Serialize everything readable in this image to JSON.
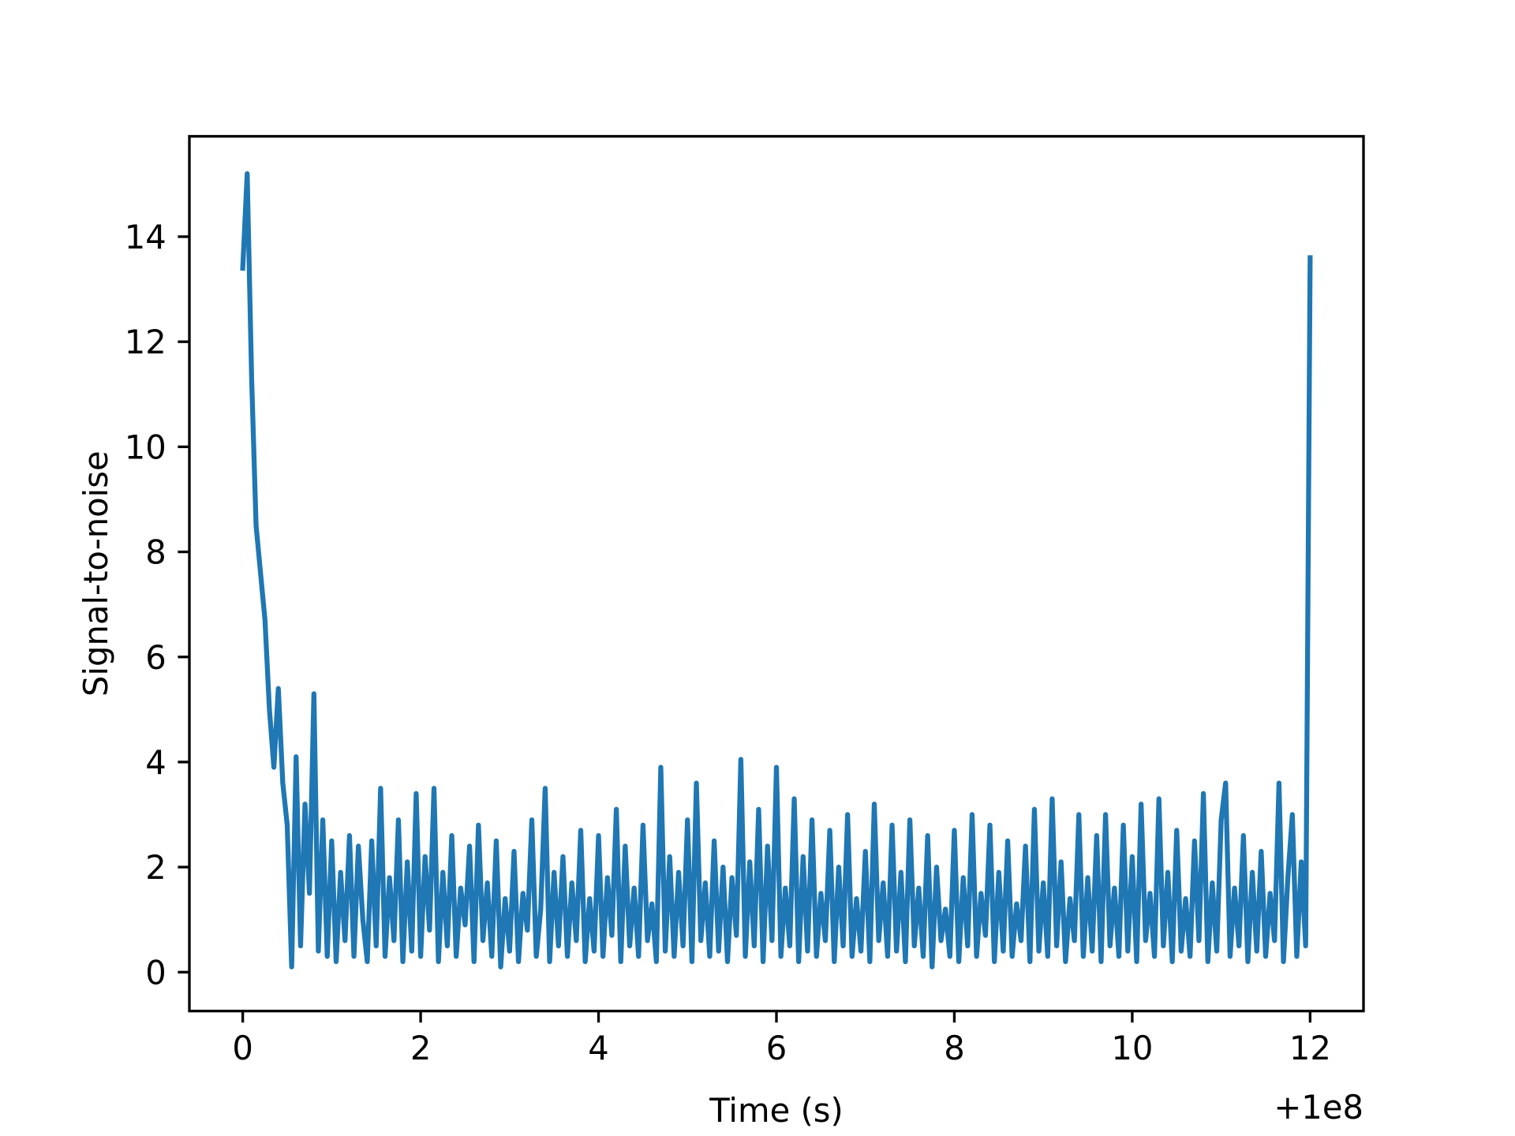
{
  "chart_data": {
    "type": "line",
    "x_label": "Time (s)",
    "y_label": "Signal-to-noise",
    "x_offset_label": "+1e8",
    "color": "#1f77b4",
    "xlim": [
      99999999.4,
      100000012.6
    ],
    "xticks": [
      {
        "value": 100000000,
        "label": "0"
      },
      {
        "value": 100000002,
        "label": "2"
      },
      {
        "value": 100000004,
        "label": "4"
      },
      {
        "value": 100000006,
        "label": "6"
      },
      {
        "value": 100000008,
        "label": "8"
      },
      {
        "value": 100000010,
        "label": "10"
      },
      {
        "value": 100000012,
        "label": "12"
      }
    ],
    "ylim": [
      -0.74,
      15.91
    ],
    "yticks": [
      0,
      2,
      4,
      6,
      8,
      10,
      12,
      14
    ],
    "x": [
      100000000.0,
      100000000.05,
      100000000.1,
      100000000.15,
      100000000.2,
      100000000.25,
      100000000.3,
      100000000.35,
      100000000.4,
      100000000.45,
      100000000.5,
      100000000.55,
      100000000.6,
      100000000.65,
      100000000.7,
      100000000.75,
      100000000.8,
      100000000.85,
      100000000.9,
      100000000.95,
      100000001.0,
      100000001.05,
      100000001.1,
      100000001.15,
      100000001.2,
      100000001.25,
      100000001.3,
      100000001.35,
      100000001.4,
      100000001.45,
      100000001.5,
      100000001.55,
      100000001.6,
      100000001.65,
      100000001.7,
      100000001.75,
      100000001.8,
      100000001.85,
      100000001.9,
      100000001.95,
      100000002.0,
      100000002.05,
      100000002.1,
      100000002.15,
      100000002.2,
      100000002.25,
      100000002.3,
      100000002.35,
      100000002.4,
      100000002.45,
      100000002.5,
      100000002.55,
      100000002.6,
      100000002.65,
      100000002.7,
      100000002.75,
      100000002.8,
      100000002.85,
      100000002.9,
      100000002.95,
      100000003.0,
      100000003.05,
      100000003.1,
      100000003.15,
      100000003.2,
      100000003.25,
      100000003.3,
      100000003.35,
      100000003.4,
      100000003.45,
      100000003.5,
      100000003.55,
      100000003.6,
      100000003.65,
      100000003.7,
      100000003.75,
      100000003.8,
      100000003.85,
      100000003.9,
      100000003.95,
      100000004.0,
      100000004.05,
      100000004.1,
      100000004.15,
      100000004.2,
      100000004.25,
      100000004.3,
      100000004.35,
      100000004.4,
      100000004.45,
      100000004.5,
      100000004.55,
      100000004.6,
      100000004.65,
      100000004.7,
      100000004.75,
      100000004.8,
      100000004.85,
      100000004.9,
      100000004.95,
      100000005.0,
      100000005.05,
      100000005.1,
      100000005.15,
      100000005.2,
      100000005.25,
      100000005.3,
      100000005.35,
      100000005.4,
      100000005.45,
      100000005.5,
      100000005.55,
      100000005.6,
      100000005.65,
      100000005.7,
      100000005.75,
      100000005.8,
      100000005.85,
      100000005.9,
      100000005.95,
      100000006.0,
      100000006.05,
      100000006.1,
      100000006.15,
      100000006.2,
      100000006.25,
      100000006.3,
      100000006.35,
      100000006.4,
      100000006.45,
      100000006.5,
      100000006.55,
      100000006.6,
      100000006.65,
      100000006.7,
      100000006.75,
      100000006.8,
      100000006.85,
      100000006.9,
      100000006.95,
      100000007.0,
      100000007.05,
      100000007.1,
      100000007.15,
      100000007.2,
      100000007.25,
      100000007.3,
      100000007.35,
      100000007.4,
      100000007.45,
      100000007.5,
      100000007.55,
      100000007.6,
      100000007.65,
      100000007.7,
      100000007.75,
      100000007.8,
      100000007.85,
      100000007.9,
      100000007.95,
      100000008.0,
      100000008.05,
      100000008.1,
      100000008.15,
      100000008.2,
      100000008.25,
      100000008.3,
      100000008.35,
      100000008.4,
      100000008.45,
      100000008.5,
      100000008.55,
      100000008.6,
      100000008.65,
      100000008.7,
      100000008.75,
      100000008.8,
      100000008.85,
      100000008.9,
      100000008.95,
      100000009.0,
      100000009.05,
      100000009.1,
      100000009.15,
      100000009.2,
      100000009.25,
      100000009.3,
      100000009.35,
      100000009.4,
      100000009.45,
      100000009.5,
      100000009.55,
      100000009.6,
      100000009.65,
      100000009.7,
      100000009.75,
      100000009.8,
      100000009.85,
      100000009.9,
      100000009.95,
      100000010.0,
      100000010.05,
      100000010.1,
      100000010.15,
      100000010.2,
      100000010.25,
      100000010.3,
      100000010.35,
      100000010.4,
      100000010.45,
      100000010.5,
      100000010.55,
      100000010.6,
      100000010.65,
      100000010.7,
      100000010.75,
      100000010.8,
      100000010.85,
      100000010.9,
      100000010.95,
      100000011.0,
      100000011.05,
      100000011.1,
      100000011.15,
      100000011.2,
      100000011.25,
      100000011.3,
      100000011.35,
      100000011.4,
      100000011.45,
      100000011.5,
      100000011.55,
      100000011.6,
      100000011.65,
      100000011.7,
      100000011.75,
      100000011.8,
      100000011.85,
      100000011.9,
      100000011.95,
      100000012.0
    ],
    "values": [
      13.4,
      15.2,
      11.3,
      8.5,
      7.6,
      6.7,
      5.0,
      3.9,
      5.4,
      3.6,
      2.8,
      0.1,
      4.1,
      0.5,
      3.2,
      1.5,
      5.3,
      0.4,
      2.9,
      0.3,
      2.5,
      0.2,
      1.9,
      0.6,
      2.6,
      0.3,
      2.4,
      1.0,
      0.2,
      2.5,
      0.5,
      3.5,
      0.3,
      1.8,
      0.6,
      2.9,
      0.2,
      2.1,
      0.4,
      3.4,
      0.3,
      2.2,
      0.8,
      3.5,
      0.2,
      1.9,
      0.5,
      2.6,
      0.3,
      1.6,
      0.9,
      2.4,
      0.2,
      2.8,
      0.6,
      1.7,
      0.3,
      2.5,
      0.1,
      1.4,
      0.4,
      2.3,
      0.2,
      1.5,
      0.8,
      2.9,
      0.3,
      1.2,
      3.5,
      0.2,
      1.9,
      0.5,
      2.2,
      0.3,
      1.7,
      0.6,
      2.7,
      0.2,
      1.4,
      0.4,
      2.6,
      0.3,
      1.8,
      0.7,
      3.1,
      0.2,
      2.4,
      0.5,
      1.6,
      0.3,
      2.8,
      0.6,
      1.3,
      0.2,
      3.9,
      0.4,
      2.2,
      0.3,
      1.9,
      0.5,
      2.9,
      0.2,
      3.6,
      0.6,
      1.7,
      0.3,
      2.5,
      0.4,
      2.0,
      0.2,
      1.8,
      0.7,
      4.05,
      0.3,
      2.1,
      0.5,
      3.1,
      0.2,
      2.4,
      0.6,
      3.9,
      0.3,
      1.6,
      0.5,
      3.3,
      0.2,
      2.2,
      0.4,
      2.9,
      0.3,
      1.5,
      0.6,
      2.7,
      0.2,
      2.0,
      0.5,
      3.0,
      0.3,
      1.4,
      0.4,
      2.3,
      0.2,
      3.2,
      0.6,
      1.7,
      0.3,
      2.8,
      0.4,
      1.9,
      0.2,
      2.9,
      0.5,
      1.6,
      0.3,
      2.6,
      0.1,
      2.0,
      0.6,
      1.2,
      0.3,
      2.7,
      0.2,
      1.8,
      0.5,
      3.0,
      0.3,
      1.5,
      0.7,
      2.8,
      0.2,
      1.9,
      0.4,
      2.5,
      0.3,
      1.3,
      0.6,
      2.4,
      0.2,
      3.1,
      0.4,
      1.7,
      0.3,
      3.3,
      0.5,
      2.1,
      0.2,
      1.4,
      0.6,
      3.0,
      0.3,
      1.8,
      0.4,
      2.6,
      0.2,
      3.0,
      0.5,
      1.6,
      0.3,
      2.8,
      0.4,
      2.2,
      0.2,
      3.2,
      0.6,
      1.5,
      0.3,
      3.3,
      0.5,
      1.9,
      0.2,
      2.7,
      0.4,
      1.4,
      0.3,
      2.5,
      0.6,
      3.4,
      0.2,
      1.7,
      0.4,
      2.9,
      3.6,
      0.3,
      1.6,
      0.5,
      2.6,
      0.2,
      1.9,
      0.4,
      2.3,
      0.3,
      1.5,
      0.6,
      3.6,
      0.2,
      1.8,
      3.0,
      0.3,
      2.1,
      0.5,
      13.6
    ]
  }
}
